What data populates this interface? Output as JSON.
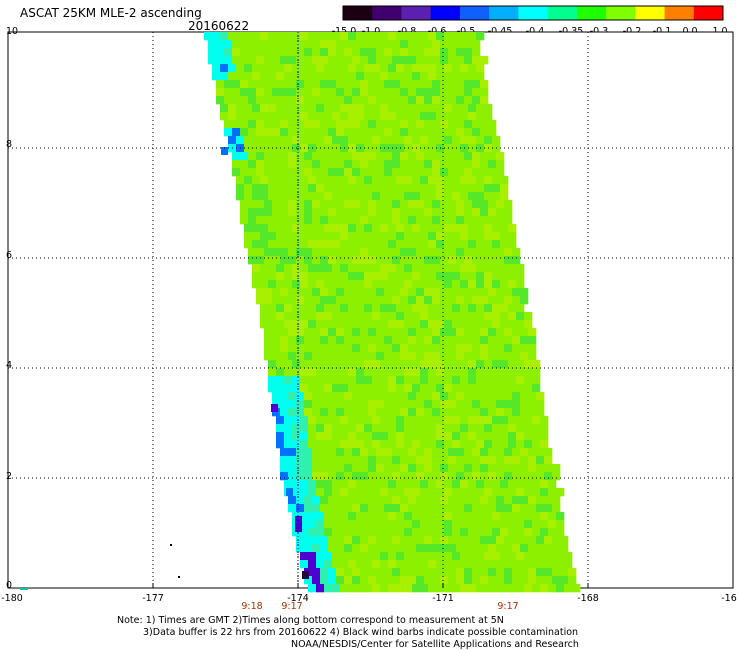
{
  "header": {
    "title": "ASCAT 25KM MLE-2 ascending",
    "date": "20160622"
  },
  "colorbar": {
    "labels": [
      "-15.0",
      "-1.0",
      "-0.8",
      "-0.6",
      "-0.5",
      "-0.45",
      "-0.4",
      "-0.35",
      "-0.3",
      "-0.2",
      "-0.1",
      "0.0",
      "1.0"
    ],
    "colors": [
      "#1a0010",
      "#400070",
      "#5a20b0",
      "#0000ff",
      "#1060ff",
      "#00b0ff",
      "#00ffff",
      "#00ff90",
      "#20ff00",
      "#80ff00",
      "#ffff00",
      "#ff8000",
      "#ff0000"
    ]
  },
  "axes": {
    "x_ticks": [
      "-180",
      "-177",
      "-174",
      "-171",
      "-168",
      "-16"
    ],
    "y_ticks": [
      "10",
      "8",
      "6",
      "4",
      "2",
      "0"
    ]
  },
  "times": [
    "9:18",
    "9:17",
    "9:17"
  ],
  "notes": {
    "line1": "Note: 1) Times are GMT 2)Times along bottom correspond to measurement at 5N",
    "line2": "3)Data buffer is 22 hrs from 20160622 4) Black wind barbs indicate possible contamination",
    "line3": "NOAA/NESDIS/Center for Satellite Applications and Research"
  },
  "swath": {
    "lon_range": [
      -180,
      -165
    ],
    "lat_range": [
      0,
      10
    ],
    "dominant_value": "-0.35 to -0.3",
    "colors": {
      "main": "#8cf000",
      "light": "#a8f000",
      "green": "#55e82a",
      "cyan": "#00ffee",
      "teal": "#30f0b0",
      "blue": "#0070ff",
      "violet": "#5000d0",
      "dark": "#2a0040"
    }
  }
}
